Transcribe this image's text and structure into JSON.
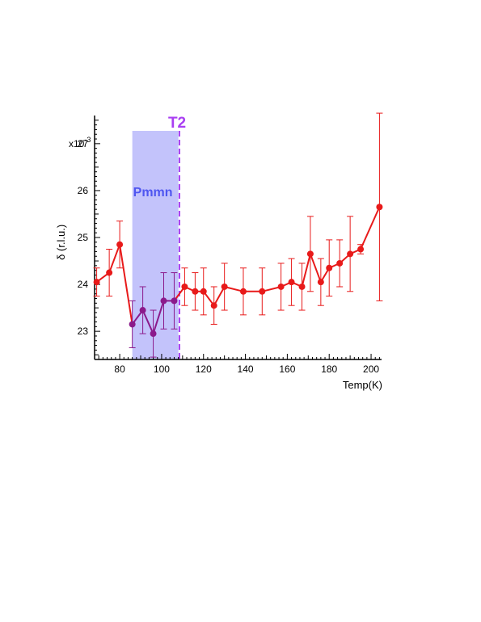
{
  "chart_data": {
    "type": "scatter",
    "xlabel": "Temp(K)",
    "ylabel": "δ (r.l.u.)",
    "y_multiplier": "x10",
    "y_multiplier_exp": "-3",
    "xlim": [
      68,
      205
    ],
    "ylim": [
      22.4,
      27.6
    ],
    "xticks": [
      80,
      100,
      120,
      140,
      160,
      180,
      200
    ],
    "yticks": [
      23,
      24,
      25,
      26,
      27
    ],
    "ytick_top_label": "27",
    "grid": false,
    "shaded_region": {
      "label": "Pmmn",
      "x_range": [
        86,
        108
      ],
      "color": "#c3c3fb"
    },
    "vline": {
      "label": "T2",
      "x": 108.5,
      "color": "#a93ff2"
    },
    "series": [
      {
        "color": "#e81a1a",
        "line_color_in_region": "#8b1a8b",
        "points": [
          {
            "x": 69,
            "y": 24.05,
            "err": 0.3
          },
          {
            "x": 75,
            "y": 24.25,
            "err": 0.5
          },
          {
            "x": 80,
            "y": 24.85,
            "err": 0.5
          },
          {
            "x": 86,
            "y": 23.15,
            "err": 0.5
          },
          {
            "x": 91,
            "y": 23.45,
            "err": 0.5
          },
          {
            "x": 96,
            "y": 22.95,
            "err": 0.5
          },
          {
            "x": 101,
            "y": 23.65,
            "err": 0.6
          },
          {
            "x": 106,
            "y": 23.65,
            "err": 0.6
          },
          {
            "x": 111,
            "y": 23.95,
            "err": 0.4
          },
          {
            "x": 116,
            "y": 23.85,
            "err": 0.4
          },
          {
            "x": 120,
            "y": 23.85,
            "err": 0.5
          },
          {
            "x": 125,
            "y": 23.55,
            "err": 0.4
          },
          {
            "x": 130,
            "y": 23.95,
            "err": 0.5
          },
          {
            "x": 139,
            "y": 23.85,
            "err": 0.5
          },
          {
            "x": 148,
            "y": 23.85,
            "err": 0.5
          },
          {
            "x": 157,
            "y": 23.95,
            "err": 0.5
          },
          {
            "x": 162,
            "y": 24.05,
            "err": 0.5
          },
          {
            "x": 167,
            "y": 23.95,
            "err": 0.5
          },
          {
            "x": 171,
            "y": 24.65,
            "err": 0.8
          },
          {
            "x": 176,
            "y": 24.05,
            "err": 0.5
          },
          {
            "x": 180,
            "y": 24.35,
            "err": 0.6
          },
          {
            "x": 185,
            "y": 24.45,
            "err": 0.5
          },
          {
            "x": 190,
            "y": 24.65,
            "err": 0.8
          },
          {
            "x": 195,
            "y": 24.75,
            "err": 0.1
          },
          {
            "x": 204,
            "y": 25.65,
            "err": 2.0
          }
        ]
      }
    ]
  }
}
